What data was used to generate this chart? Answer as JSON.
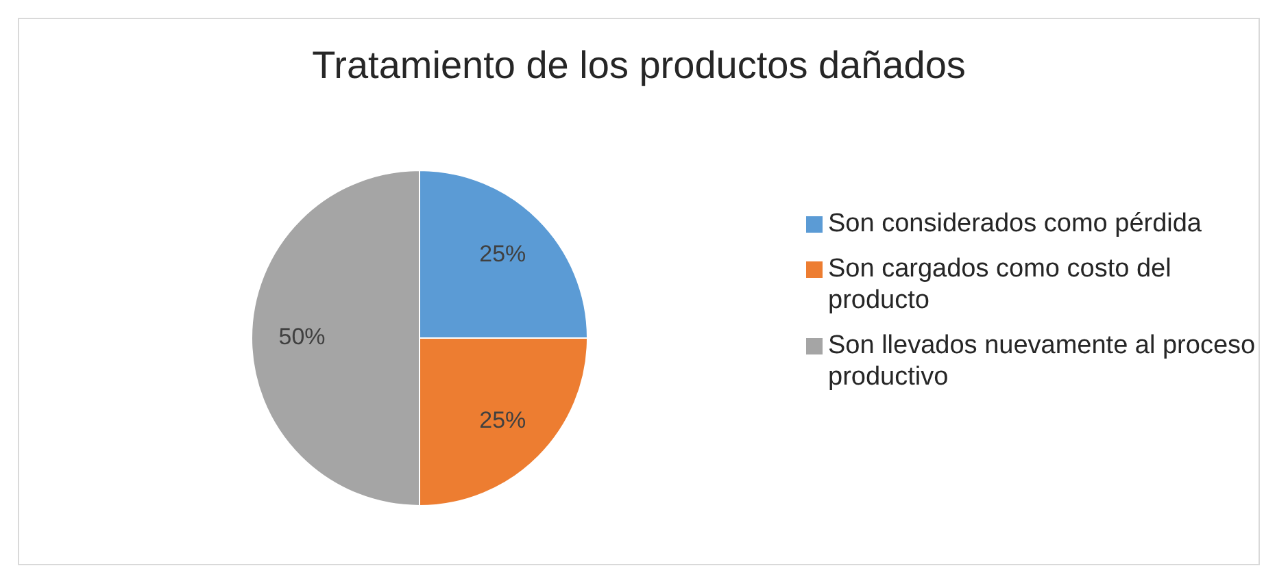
{
  "chart_data": {
    "type": "pie",
    "title": "Tratamiento de los productos dañados",
    "categories": [
      "Son considerados como pérdida",
      "Son cargados como costo del producto",
      "Son llevados nuevamente al proceso productivo"
    ],
    "values": [
      25,
      25,
      50
    ],
    "colors": [
      "#5b9bd5",
      "#ed7d31",
      "#a5a5a5"
    ],
    "value_labels": [
      "25%",
      "25%",
      "50%"
    ],
    "legend": "right"
  }
}
